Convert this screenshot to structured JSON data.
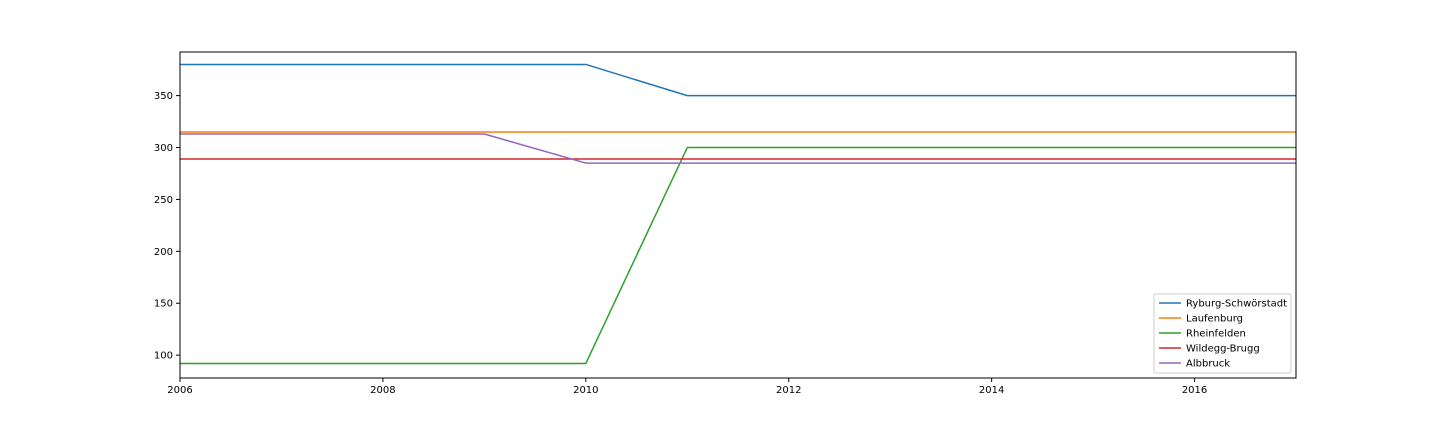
{
  "chart_data": {
    "type": "line",
    "title": "",
    "xlabel": "",
    "ylabel": "",
    "xlim": [
      2006,
      2017
    ],
    "ylim": [
      78,
      392
    ],
    "x_ticks": [
      2006,
      2008,
      2010,
      2012,
      2014,
      2016
    ],
    "y_ticks": [
      100,
      150,
      200,
      250,
      300,
      350
    ],
    "grid": false,
    "legend_position": "lower-right",
    "x": [
      2006,
      2007,
      2008,
      2009,
      2010,
      2011,
      2012,
      2013,
      2014,
      2015,
      2016,
      2017
    ],
    "series": [
      {
        "name": "Ryburg-Schwörstadt",
        "color": "#1f77b4",
        "values": [
          380,
          380,
          380,
          380,
          380,
          350,
          350,
          350,
          350,
          350,
          350,
          350
        ]
      },
      {
        "name": "Laufenburg",
        "color": "#ff7f0e",
        "values": [
          315,
          315,
          315,
          315,
          315,
          315,
          315,
          315,
          315,
          315,
          315,
          315
        ]
      },
      {
        "name": "Rheinfelden",
        "color": "#2ca02c",
        "values": [
          92,
          92,
          92,
          92,
          92,
          300,
          300,
          300,
          300,
          300,
          300,
          300
        ]
      },
      {
        "name": "Wildegg-Brugg",
        "color": "#d62728",
        "values": [
          289,
          289,
          289,
          289,
          289,
          289,
          289,
          289,
          289,
          289,
          289,
          289
        ]
      },
      {
        "name": "Albbruck",
        "color": "#9467bd",
        "values": [
          313,
          313,
          313,
          313,
          285,
          285,
          285,
          285,
          285,
          285,
          285,
          285
        ]
      }
    ]
  }
}
